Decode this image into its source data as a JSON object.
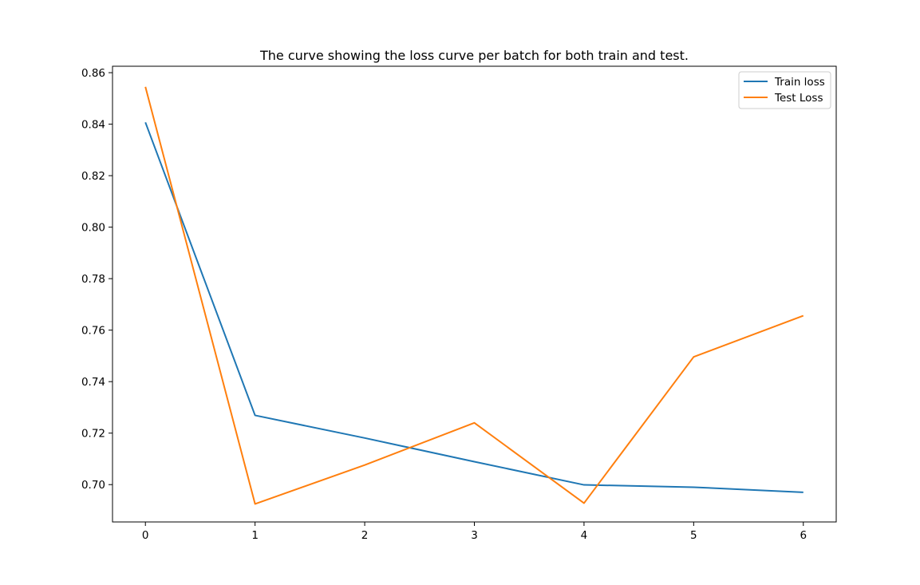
{
  "chart_data": {
    "type": "line",
    "title": "The curve showing the loss curve per batch for both train and test.",
    "xlabel": "",
    "ylabel": "",
    "x": [
      0,
      1,
      2,
      3,
      4,
      5,
      6
    ],
    "xlim": [
      -0.3,
      6.3
    ],
    "ylim": [
      0.6855,
      0.8625
    ],
    "xticks": [
      0,
      1,
      2,
      3,
      4,
      5,
      6
    ],
    "yticks": [
      0.7,
      0.72,
      0.74,
      0.76,
      0.78,
      0.8,
      0.82,
      0.84,
      0.86
    ],
    "xtick_labels": [
      "0",
      "1",
      "2",
      "3",
      "4",
      "5",
      "6"
    ],
    "ytick_labels": [
      "0.70",
      "0.72",
      "0.74",
      "0.76",
      "0.78",
      "0.80",
      "0.82",
      "0.84",
      "0.86"
    ],
    "grid": false,
    "legend_position": "top-right",
    "series": [
      {
        "name": "Train loss",
        "color": "#1f77b4",
        "values": [
          0.8407,
          0.7269,
          0.7181,
          0.7089,
          0.6999,
          0.699,
          0.697
        ]
      },
      {
        "name": "Test Loss",
        "color": "#ff7f0e",
        "values": [
          0.8545,
          0.6925,
          0.7076,
          0.724,
          0.6928,
          0.7496,
          0.7656
        ]
      }
    ]
  }
}
